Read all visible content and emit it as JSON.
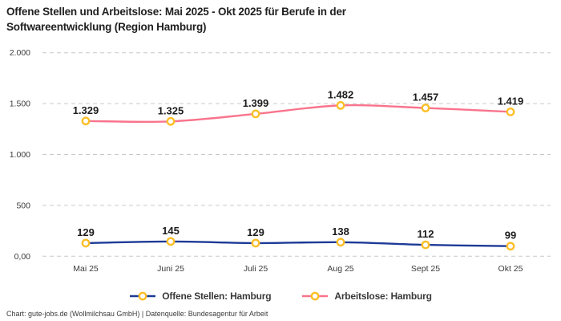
{
  "header": {
    "title_lines": [
      "Offene Stellen und Arbeitslose: Mai 2025 - Okt 2025 für Berufe in der",
      "Softwareentwicklung (Region Hamburg)"
    ]
  },
  "chart_data": {
    "type": "line",
    "title": "Offene Stellen und Arbeitslose: Mai 2025 - Okt 2025 für Berufe in der Softwareentwicklung (Region Hamburg)",
    "categories": [
      "Mai 25",
      "Juni 25",
      "Juli 25",
      "Aug 25",
      "Sept 25",
      "Okt 25"
    ],
    "series": [
      {
        "name": "Offene Stellen: Hamburg",
        "values": [
          129,
          145,
          129,
          138,
          112,
          99
        ],
        "labels": [
          "129",
          "145",
          "129",
          "138",
          "112",
          "99"
        ],
        "color": "#1d3a96"
      },
      {
        "name": "Arbeitslose: Hamburg",
        "values": [
          1329,
          1325,
          1399,
          1482,
          1457,
          1419
        ],
        "labels": [
          "1.329",
          "1.325",
          "1.399",
          "1.482",
          "1.457",
          "1.419"
        ],
        "color": "#f9748c"
      }
    ],
    "marker": {
      "fill": "#ffffff",
      "stroke": "#fcbf29"
    },
    "y_ticks": [
      {
        "value": 0,
        "label": "0,00"
      },
      {
        "value": 500,
        "label": "500"
      },
      {
        "value": 1000,
        "label": "1.000"
      },
      {
        "value": 1500,
        "label": "1.500"
      },
      {
        "value": 2000,
        "label": "2.000"
      }
    ],
    "ylim": [
      0,
      2000
    ],
    "grid": "horizontal-dashed",
    "grid_color": "#c9c9c9",
    "legend_position": "bottom",
    "label_color": "#1c1c1c",
    "tick_color": "#3c3c3c"
  },
  "footer": {
    "credit": "Chart: gute-jobs.de (Wollmilchsau GmbH) | Datenquelle: Bundesagentur für Arbeit"
  }
}
